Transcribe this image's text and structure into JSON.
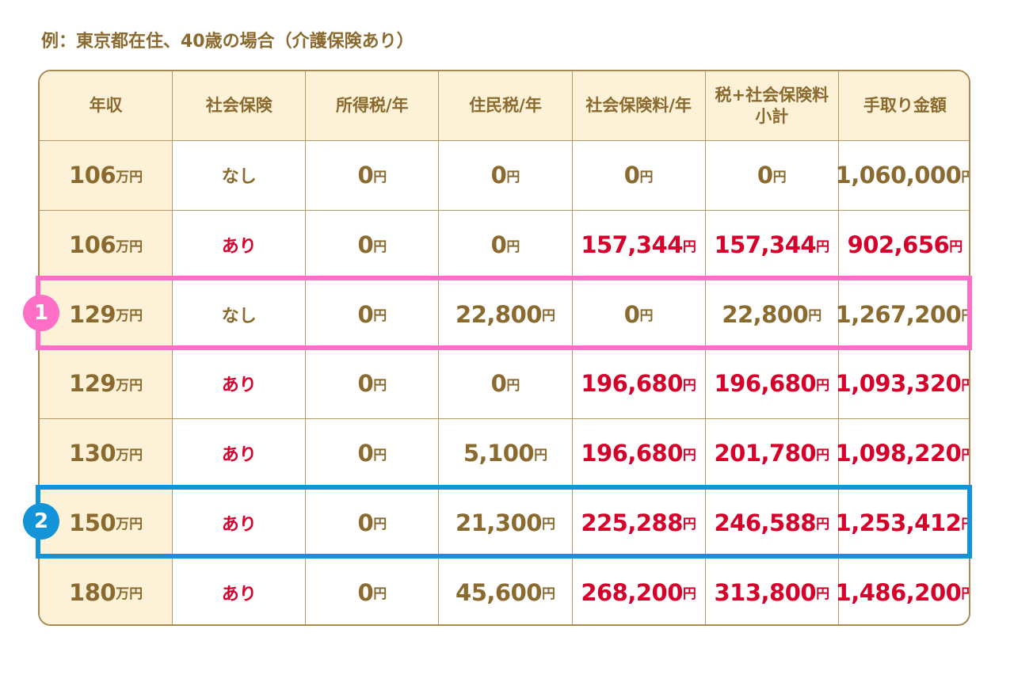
{
  "caption": "例：東京都在住、40歳の場合（介護保険あり）",
  "header": [
    [
      "年収"
    ],
    [
      "社会保険"
    ],
    [
      "所得税/年"
    ],
    [
      "住民税/年"
    ],
    [
      "社会保険料/年"
    ],
    [
      "税+社会保険料",
      "小計"
    ],
    [
      "手取り金額"
    ]
  ],
  "rows": [
    {
      "cells": [
        {
          "value": "106",
          "unit": "万円"
        },
        {
          "value": "なし"
        },
        {
          "value": "0",
          "unit": "円"
        },
        {
          "value": "0",
          "unit": "円"
        },
        {
          "value": "0",
          "unit": "円"
        },
        {
          "value": "0",
          "unit": "円"
        },
        {
          "value": "1,060,000",
          "unit": "円"
        }
      ]
    },
    {
      "cells": [
        {
          "value": "106",
          "unit": "万円"
        },
        {
          "value": "あり",
          "color": "#d6002a"
        },
        {
          "value": "0",
          "unit": "円"
        },
        {
          "value": "0",
          "unit": "円"
        },
        {
          "value": "157,344",
          "unit": "円",
          "color": "#d6002a"
        },
        {
          "value": "157,344",
          "unit": "円",
          "color": "#d6002a"
        },
        {
          "value": "902,656",
          "unit": "円",
          "color": "#d6002a"
        }
      ]
    },
    {
      "badge": "1",
      "outline": "#ff6ec7",
      "cells": [
        {
          "value": "129",
          "unit": "万円"
        },
        {
          "value": "なし"
        },
        {
          "value": "0",
          "unit": "円"
        },
        {
          "value": "22,800",
          "unit": "円"
        },
        {
          "value": "0",
          "unit": "円"
        },
        {
          "value": "22,800",
          "unit": "円"
        },
        {
          "value": "1,267,200",
          "unit": "円"
        }
      ]
    },
    {
      "cells": [
        {
          "value": "129",
          "unit": "万円"
        },
        {
          "value": "あり",
          "color": "#d6002a"
        },
        {
          "value": "0",
          "unit": "円"
        },
        {
          "value": "0",
          "unit": "円"
        },
        {
          "value": "196,680",
          "unit": "円",
          "color": "#d6002a"
        },
        {
          "value": "196,680",
          "unit": "円",
          "color": "#d6002a"
        },
        {
          "value": "1,093,320",
          "unit": "円",
          "color": "#d6002a"
        }
      ]
    },
    {
      "cells": [
        {
          "value": "130",
          "unit": "万円"
        },
        {
          "value": "あり",
          "color": "#d6002a"
        },
        {
          "value": "0",
          "unit": "円"
        },
        {
          "value": "5,100",
          "unit": "円"
        },
        {
          "value": "196,680",
          "unit": "円",
          "color": "#d6002a"
        },
        {
          "value": "201,780",
          "unit": "円",
          "color": "#d6002a"
        },
        {
          "value": "1,098,220",
          "unit": "円",
          "color": "#d6002a"
        }
      ]
    },
    {
      "badge": "2",
      "outline": "#1393d8",
      "cells": [
        {
          "value": "150",
          "unit": "万円"
        },
        {
          "value": "あり",
          "color": "#d6002a"
        },
        {
          "value": "0",
          "unit": "円"
        },
        {
          "value": "21,300",
          "unit": "円"
        },
        {
          "value": "225,288",
          "unit": "円",
          "color": "#d6002a"
        },
        {
          "value": "246,588",
          "unit": "円",
          "color": "#d6002a"
        },
        {
          "value": "1,253,412",
          "unit": "円",
          "color": "#d6002a"
        }
      ]
    },
    {
      "cells": [
        {
          "value": "180",
          "unit": "万円"
        },
        {
          "value": "あり",
          "color": "#d6002a"
        },
        {
          "value": "0",
          "unit": "円"
        },
        {
          "value": "45,600",
          "unit": "円"
        },
        {
          "value": "268,200",
          "unit": "円",
          "color": "#d6002a"
        },
        {
          "value": "313,800",
          "unit": "円",
          "color": "#d6002a"
        },
        {
          "value": "1,486,200",
          "unit": "円",
          "color": "#d6002a"
        }
      ]
    }
  ]
}
